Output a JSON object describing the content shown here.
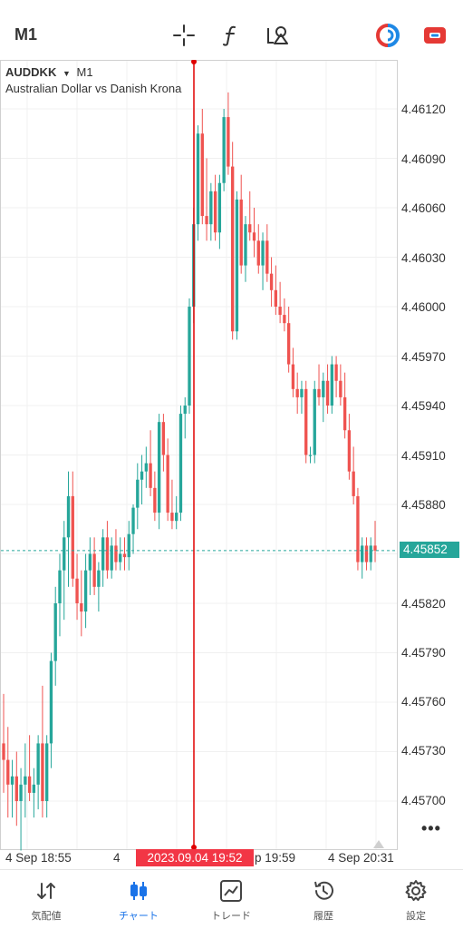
{
  "toolbar": {
    "timeframe": "M1",
    "icons": [
      "crosshair-icon",
      "function-icon",
      "objects-icon",
      "trade-panel-icon",
      "account-icon"
    ]
  },
  "symbol": {
    "name": "AUDDKK",
    "arrow": "▼",
    "timeframe": "M1",
    "description": "Australian Dollar vs Danish Krona"
  },
  "price_axis": {
    "ticks": [
      "4.46120",
      "4.46090",
      "4.46060",
      "4.46030",
      "4.46000",
      "4.45970",
      "4.45940",
      "4.45910",
      "4.45880",
      "4.45820",
      "4.45790",
      "4.45760",
      "4.45730",
      "4.45700"
    ],
    "current_price": "4.45852"
  },
  "time_axis": {
    "ticks": [
      "4 Sep 18:55",
      "4",
      "p 19:59",
      "4 Sep 20:31"
    ],
    "crosshair_time": "2023.09.04 19:52"
  },
  "colors": {
    "bull": "#26a69a",
    "bear": "#ef5350",
    "crosshair": "#e00000",
    "accent": "#1a73e8"
  },
  "chart_data": {
    "type": "candlestick",
    "symbol": "AUDDKK",
    "timeframe": "M1",
    "ylim": [
      4.4568,
      4.4615
    ],
    "current_price": 4.45852,
    "crosshair_time": "2023.09.04 19:52",
    "candles": [
      [
        4.45735,
        4.45765,
        4.45705,
        4.45725
      ],
      [
        4.45725,
        4.45745,
        4.4569,
        4.4571
      ],
      [
        4.4571,
        4.45725,
        4.4569,
        4.45715
      ],
      [
        4.45715,
        4.4573,
        4.45685,
        4.457
      ],
      [
        4.457,
        4.4572,
        4.4567,
        4.4571
      ],
      [
        4.4571,
        4.45735,
        4.4569,
        4.45715
      ],
      [
        4.45715,
        4.4574,
        4.457,
        4.45705
      ],
      [
        4.45705,
        4.4572,
        4.4569,
        4.4571
      ],
      [
        4.4571,
        4.4574,
        4.45695,
        4.45735
      ],
      [
        4.45735,
        4.4577,
        4.4569,
        4.457
      ],
      [
        4.457,
        4.4574,
        4.4569,
        4.45735
      ],
      [
        4.45735,
        4.4579,
        4.4572,
        4.45785
      ],
      [
        4.45785,
        4.4583,
        4.4577,
        4.4582
      ],
      [
        4.4582,
        4.4585,
        4.458,
        4.4584
      ],
      [
        4.4584,
        4.4587,
        4.4581,
        4.4586
      ],
      [
        4.4586,
        4.459,
        4.4583,
        4.45885
      ],
      [
        4.45885,
        4.459,
        4.4583,
        4.45835
      ],
      [
        4.45835,
        4.4585,
        4.4581,
        4.4582
      ],
      [
        4.4582,
        4.4584,
        4.458,
        4.45815
      ],
      [
        4.45815,
        4.4585,
        4.45805,
        4.4584
      ],
      [
        4.4584,
        4.4586,
        4.45825,
        4.4585
      ],
      [
        4.4585,
        4.4586,
        4.45825,
        4.4583
      ],
      [
        4.4583,
        4.45845,
        4.45815,
        4.4584
      ],
      [
        4.4584,
        4.45865,
        4.4583,
        4.4586
      ],
      [
        4.4586,
        4.4587,
        4.45835,
        4.4584
      ],
      [
        4.4584,
        4.4586,
        4.45835,
        4.45855
      ],
      [
        4.45855,
        4.45865,
        4.4584,
        4.45845
      ],
      [
        4.45845,
        4.4586,
        4.4584,
        4.4585
      ],
      [
        4.4585,
        4.4586,
        4.4584,
        4.45848
      ],
      [
        4.45848,
        4.4587,
        4.4584,
        4.45862
      ],
      [
        4.45862,
        4.4588,
        4.4585,
        4.45878
      ],
      [
        4.45878,
        4.45905,
        4.45865,
        4.45895
      ],
      [
        4.45895,
        4.4591,
        4.4588,
        4.459
      ],
      [
        4.459,
        4.45915,
        4.4589,
        4.45905
      ],
      [
        4.45905,
        4.45925,
        4.45885,
        4.4589
      ],
      [
        4.4589,
        4.459,
        4.4587,
        4.45875
      ],
      [
        4.45875,
        4.45935,
        4.45865,
        4.4593
      ],
      [
        4.4593,
        4.45935,
        4.459,
        4.4591
      ],
      [
        4.4591,
        4.4592,
        4.4587,
        4.45875
      ],
      [
        4.45875,
        4.45895,
        4.45865,
        4.4587
      ],
      [
        4.4587,
        4.45885,
        4.45865,
        4.45875
      ],
      [
        4.45875,
        4.4594,
        4.4587,
        4.45935
      ],
      [
        4.45935,
        4.45945,
        4.4592,
        4.4594
      ],
      [
        4.4594,
        4.46005,
        4.45935,
        4.46
      ],
      [
        4.46,
        4.4606,
        4.4599,
        4.4605
      ],
      [
        4.4605,
        4.4611,
        4.4604,
        4.46105
      ],
      [
        4.46105,
        4.4612,
        4.4605,
        4.46055
      ],
      [
        4.46055,
        4.4609,
        4.4604,
        4.4605
      ],
      [
        4.4605,
        4.46075,
        4.4604,
        4.4607
      ],
      [
        4.4607,
        4.4608,
        4.4604,
        4.46045
      ],
      [
        4.46045,
        4.4608,
        4.46035,
        4.46075
      ],
      [
        4.46075,
        4.4612,
        4.4607,
        4.46115
      ],
      [
        4.46115,
        4.4613,
        4.4608,
        4.46085
      ],
      [
        4.46085,
        4.461,
        4.4598,
        4.45985
      ],
      [
        4.45985,
        4.4607,
        4.4598,
        4.46065
      ],
      [
        4.46065,
        4.4608,
        4.4602,
        4.46025
      ],
      [
        4.46025,
        4.46055,
        4.46015,
        4.4605
      ],
      [
        4.4605,
        4.4607,
        4.4604,
        4.46045
      ],
      [
        4.46045,
        4.4606,
        4.4603,
        4.4604
      ],
      [
        4.4604,
        4.4605,
        4.4602,
        4.46025
      ],
      [
        4.46025,
        4.46045,
        4.4601,
        4.4604
      ],
      [
        4.4604,
        4.4605,
        4.46015,
        4.4602
      ],
      [
        4.4602,
        4.4603,
        4.46,
        4.4601
      ],
      [
        4.4601,
        4.46025,
        4.45995,
        4.46
      ],
      [
        4.46,
        4.46015,
        4.4599,
        4.45995
      ],
      [
        4.45995,
        4.46005,
        4.45985,
        4.4599
      ],
      [
        4.4599,
        4.46,
        4.4596,
        4.45965
      ],
      [
        4.45965,
        4.45975,
        4.45945,
        4.4595
      ],
      [
        4.4595,
        4.4596,
        4.45935,
        4.45945
      ],
      [
        4.45945,
        4.45955,
        4.45935,
        4.4595
      ],
      [
        4.4595,
        4.45955,
        4.45905,
        4.4591
      ],
      [
        4.4591,
        4.45915,
        4.45905,
        4.4591
      ],
      [
        4.4591,
        4.45955,
        4.45905,
        4.4595
      ],
      [
        4.4595,
        4.45965,
        4.4594,
        4.45945
      ],
      [
        4.45945,
        4.4596,
        4.4593,
        4.45955
      ],
      [
        4.45955,
        4.45965,
        4.45935,
        4.4594
      ],
      [
        4.4594,
        4.4597,
        4.45935,
        4.45965
      ],
      [
        4.45965,
        4.4597,
        4.45945,
        4.45955
      ],
      [
        4.45955,
        4.45965,
        4.4594,
        4.45945
      ],
      [
        4.45945,
        4.4596,
        4.4592,
        4.45925
      ],
      [
        4.45925,
        4.45935,
        4.45895,
        4.459
      ],
      [
        4.459,
        4.45915,
        4.4588,
        4.45885
      ],
      [
        4.45885,
        4.4589,
        4.4584,
        4.45845
      ],
      [
        4.45845,
        4.4586,
        4.45835,
        4.45855
      ],
      [
        4.45855,
        4.4586,
        4.4584,
        4.45845
      ],
      [
        4.45845,
        4.4586,
        4.4584,
        4.45855
      ],
      [
        4.45855,
        4.4587,
        4.45845,
        4.45852
      ]
    ]
  },
  "tabbar": {
    "tabs": [
      {
        "label": "気配値",
        "icon": "quotes-icon"
      },
      {
        "label": "チャート",
        "icon": "chart-icon"
      },
      {
        "label": "トレード",
        "icon": "trade-icon"
      },
      {
        "label": "履歴",
        "icon": "history-icon"
      },
      {
        "label": "設定",
        "icon": "settings-icon"
      }
    ],
    "active": "チャート"
  }
}
